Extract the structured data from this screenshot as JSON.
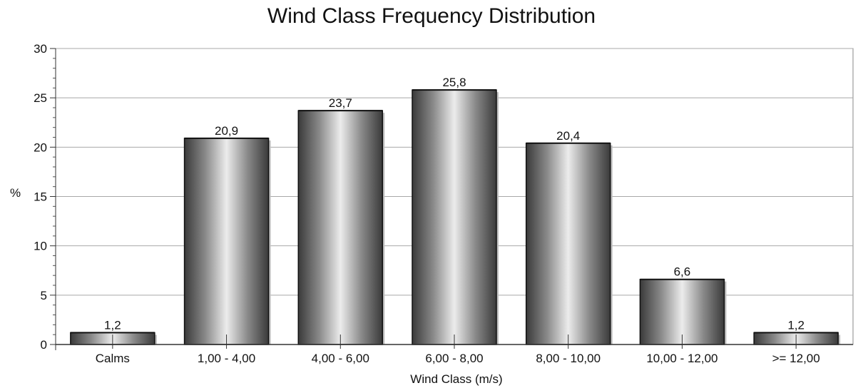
{
  "chart_data": {
    "type": "bar",
    "title": "Wind Class Frequency Distribution",
    "xlabel": "Wind Class (m/s)",
    "ylabel": "%",
    "categories": [
      "Calms",
      "1,00 - 4,00",
      "4,00 - 6,00",
      "6,00 - 8,00",
      "8,00 - 10,00",
      "10,00 - 12,00",
      ">= 12,00"
    ],
    "values": [
      1.2,
      20.9,
      23.7,
      25.8,
      20.4,
      6.6,
      1.2
    ],
    "value_labels": [
      "1,2",
      "20,9",
      "23,7",
      "25,8",
      "20,4",
      "6,6",
      "1,2"
    ],
    "ylim": [
      0,
      30
    ],
    "yticks": [
      0,
      5,
      10,
      15,
      20,
      25,
      30
    ],
    "grid": true,
    "legend": "none"
  }
}
